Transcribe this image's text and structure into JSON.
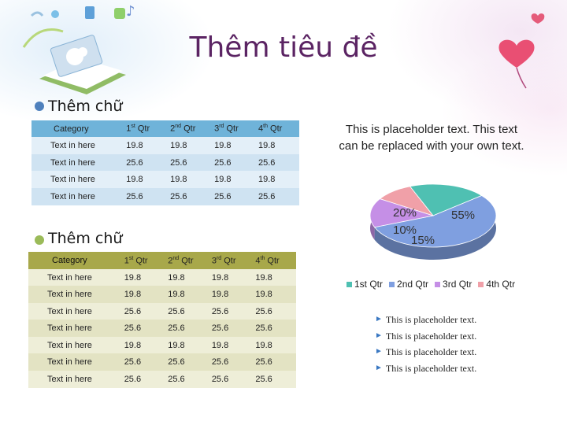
{
  "title": "Thêm tiêu đề",
  "section1": {
    "heading": "Thêm chữ"
  },
  "section2": {
    "heading": "Thêm chữ"
  },
  "table1": {
    "headers": [
      {
        "text": "Category",
        "sup": ""
      },
      {
        "text": "1",
        "sup": "st",
        "rest": " Qtr"
      },
      {
        "text": "2",
        "sup": "nd",
        "rest": " Qtr"
      },
      {
        "text": "3",
        "sup": "rd",
        "rest": " Qtr"
      },
      {
        "text": "4",
        "sup": "th",
        "rest": " Qtr"
      }
    ],
    "rows": [
      [
        "Text in here",
        "19.8",
        "19.8",
        "19.8",
        "19.8"
      ],
      [
        "Text in here",
        "25.6",
        "25.6",
        "25.6",
        "25.6"
      ],
      [
        "Text in here",
        "19.8",
        "19.8",
        "19.8",
        "19.8"
      ],
      [
        "Text in here",
        "25.6",
        "25.6",
        "25.6",
        "25.6"
      ]
    ]
  },
  "table2": {
    "headers": [
      {
        "text": "Category",
        "sup": ""
      },
      {
        "text": "1",
        "sup": "st",
        "rest": " Qtr"
      },
      {
        "text": "2",
        "sup": "nd",
        "rest": " Qtr"
      },
      {
        "text": "3",
        "sup": "rd",
        "rest": " Qtr"
      },
      {
        "text": "4",
        "sup": "th",
        "rest": " Qtr"
      }
    ],
    "rows": [
      [
        "Text in here",
        "19.8",
        "19.8",
        "19.8",
        "19.8"
      ],
      [
        "Text in here",
        "19.8",
        "19.8",
        "19.8",
        "19.8"
      ],
      [
        "Text in here",
        "25.6",
        "25.6",
        "25.6",
        "25.6"
      ],
      [
        "Text in here",
        "25.6",
        "25.6",
        "25.6",
        "25.6"
      ],
      [
        "Text in here",
        "19.8",
        "19.8",
        "19.8",
        "19.8"
      ],
      [
        "Text in here",
        "25.6",
        "25.6",
        "25.6",
        "25.6"
      ],
      [
        "Text in here",
        "25.6",
        "25.6",
        "25.6",
        "25.6"
      ]
    ]
  },
  "caption": "This is placeholder text. This text can be replaced with your own text.",
  "chart_data": {
    "type": "pie",
    "categories": [
      "1st Qtr",
      "2nd Qtr",
      "3rd Qtr",
      "4th Qtr"
    ],
    "values": [
      20,
      55,
      15,
      10
    ],
    "labels": [
      "20%",
      "55%",
      "15%",
      "10%"
    ],
    "colors": [
      "#4fc0b2",
      "#7f9fe0",
      "#c58fe6",
      "#f0a0a8"
    ],
    "legend_position": "bottom"
  },
  "bullets": [
    "This is placeholder text.",
    "This is placeholder text.",
    "This is placeholder text.",
    "This is placeholder text."
  ],
  "colors": {
    "title": "#5b2463",
    "table1_header": "#6fb3d9",
    "table1_row_a": "#e3eff8",
    "table1_row_b": "#cfe3f2",
    "table2_header": "#a8a84a",
    "table2_row_a": "#eeeed8",
    "table2_row_b": "#e3e3c3",
    "bullet1": "#4f81bd",
    "bullet2": "#9bbb59"
  },
  "icons": [
    "open-book-decoration-icon",
    "heart-balloon-icon",
    "music-note-icon"
  ]
}
